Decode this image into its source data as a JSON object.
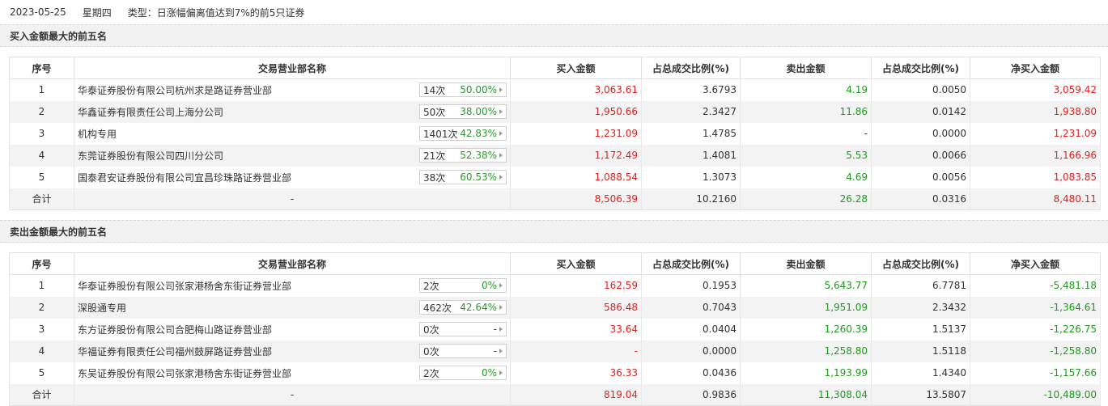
{
  "header": {
    "date": "2023-05-25",
    "weekday": "星期四",
    "type_text": "类型：日涨幅偏离值达到7%的前5只证券"
  },
  "columns": {
    "seq": "序号",
    "name": "交易营业部名称",
    "buy": "买入金额",
    "buy_pct": "占总成交比例(%)",
    "sell": "卖出金额",
    "sell_pct": "占总成交比例(%)",
    "net": "净买入金额"
  },
  "buy_section": {
    "title": "买入金额最大的前五名",
    "rows": [
      {
        "seq": "1",
        "name": "华泰证券股份有限公司杭州求是路证券营业部",
        "count": "14次",
        "rate": "50.00%",
        "buy": "3,063.61",
        "buy_pct": "3.6793",
        "sell": "4.19",
        "sell_pct": "0.0050",
        "net": "3,059.42"
      },
      {
        "seq": "2",
        "name": "华鑫证券有限责任公司上海分公司",
        "count": "50次",
        "rate": "38.00%",
        "buy": "1,950.66",
        "buy_pct": "2.3427",
        "sell": "11.86",
        "sell_pct": "0.0142",
        "net": "1,938.80"
      },
      {
        "seq": "3",
        "name": "机构专用",
        "count": "1401次",
        "rate": "42.83%",
        "buy": "1,231.09",
        "buy_pct": "1.4785",
        "sell": "-",
        "sell_pct": "0.0000",
        "net": "1,231.09"
      },
      {
        "seq": "4",
        "name": "东莞证券股份有限公司四川分公司",
        "count": "21次",
        "rate": "52.38%",
        "buy": "1,172.49",
        "buy_pct": "1.4081",
        "sell": "5.53",
        "sell_pct": "0.0066",
        "net": "1,166.96"
      },
      {
        "seq": "5",
        "name": "国泰君安证券股份有限公司宜昌珍珠路证券营业部",
        "count": "38次",
        "rate": "60.53%",
        "buy": "1,088.54",
        "buy_pct": "1.3073",
        "sell": "4.69",
        "sell_pct": "0.0056",
        "net": "1,083.85"
      }
    ],
    "total": {
      "label": "合计",
      "name": "-",
      "buy": "8,506.39",
      "buy_pct": "10.2160",
      "sell": "26.28",
      "sell_pct": "0.0316",
      "net": "8,480.11"
    }
  },
  "sell_section": {
    "title": "卖出金额最大的前五名",
    "rows": [
      {
        "seq": "1",
        "name": "华泰证券股份有限公司张家港杨舍东街证券营业部",
        "count": "2次",
        "rate": "0%",
        "buy": "162.59",
        "buy_pct": "0.1953",
        "sell": "5,643.77",
        "sell_pct": "6.7781",
        "net": "-5,481.18"
      },
      {
        "seq": "2",
        "name": "深股通专用",
        "count": "462次",
        "rate": "42.64%",
        "buy": "586.48",
        "buy_pct": "0.7043",
        "sell": "1,951.09",
        "sell_pct": "2.3432",
        "net": "-1,364.61"
      },
      {
        "seq": "3",
        "name": "东方证券股份有限公司合肥梅山路证券营业部",
        "count": "0次",
        "rate": "-",
        "buy": "33.64",
        "buy_pct": "0.0404",
        "sell": "1,260.39",
        "sell_pct": "1.5137",
        "net": "-1,226.75"
      },
      {
        "seq": "4",
        "name": "华福证券有限责任公司福州鼓屏路证券营业部",
        "count": "0次",
        "rate": "-",
        "buy": "-",
        "buy_pct": "0.0000",
        "sell": "1,258.80",
        "sell_pct": "1.5118",
        "net": "-1,258.80"
      },
      {
        "seq": "5",
        "name": "东吴证券股份有限公司张家港杨舍东街证券营业部",
        "count": "2次",
        "rate": "0%",
        "buy": "36.33",
        "buy_pct": "0.0436",
        "sell": "1,193.99",
        "sell_pct": "1.4340",
        "net": "-1,157.66"
      }
    ],
    "total": {
      "label": "合计",
      "name": "-",
      "buy": "819.04",
      "buy_pct": "0.9836",
      "sell": "11,308.04",
      "sell_pct": "13.5807",
      "net": "-10,489.00"
    }
  },
  "colors": {
    "buy_value": "#e02020",
    "sell_value": "#1e9a1e",
    "rate_value": "#2a9a2a"
  }
}
